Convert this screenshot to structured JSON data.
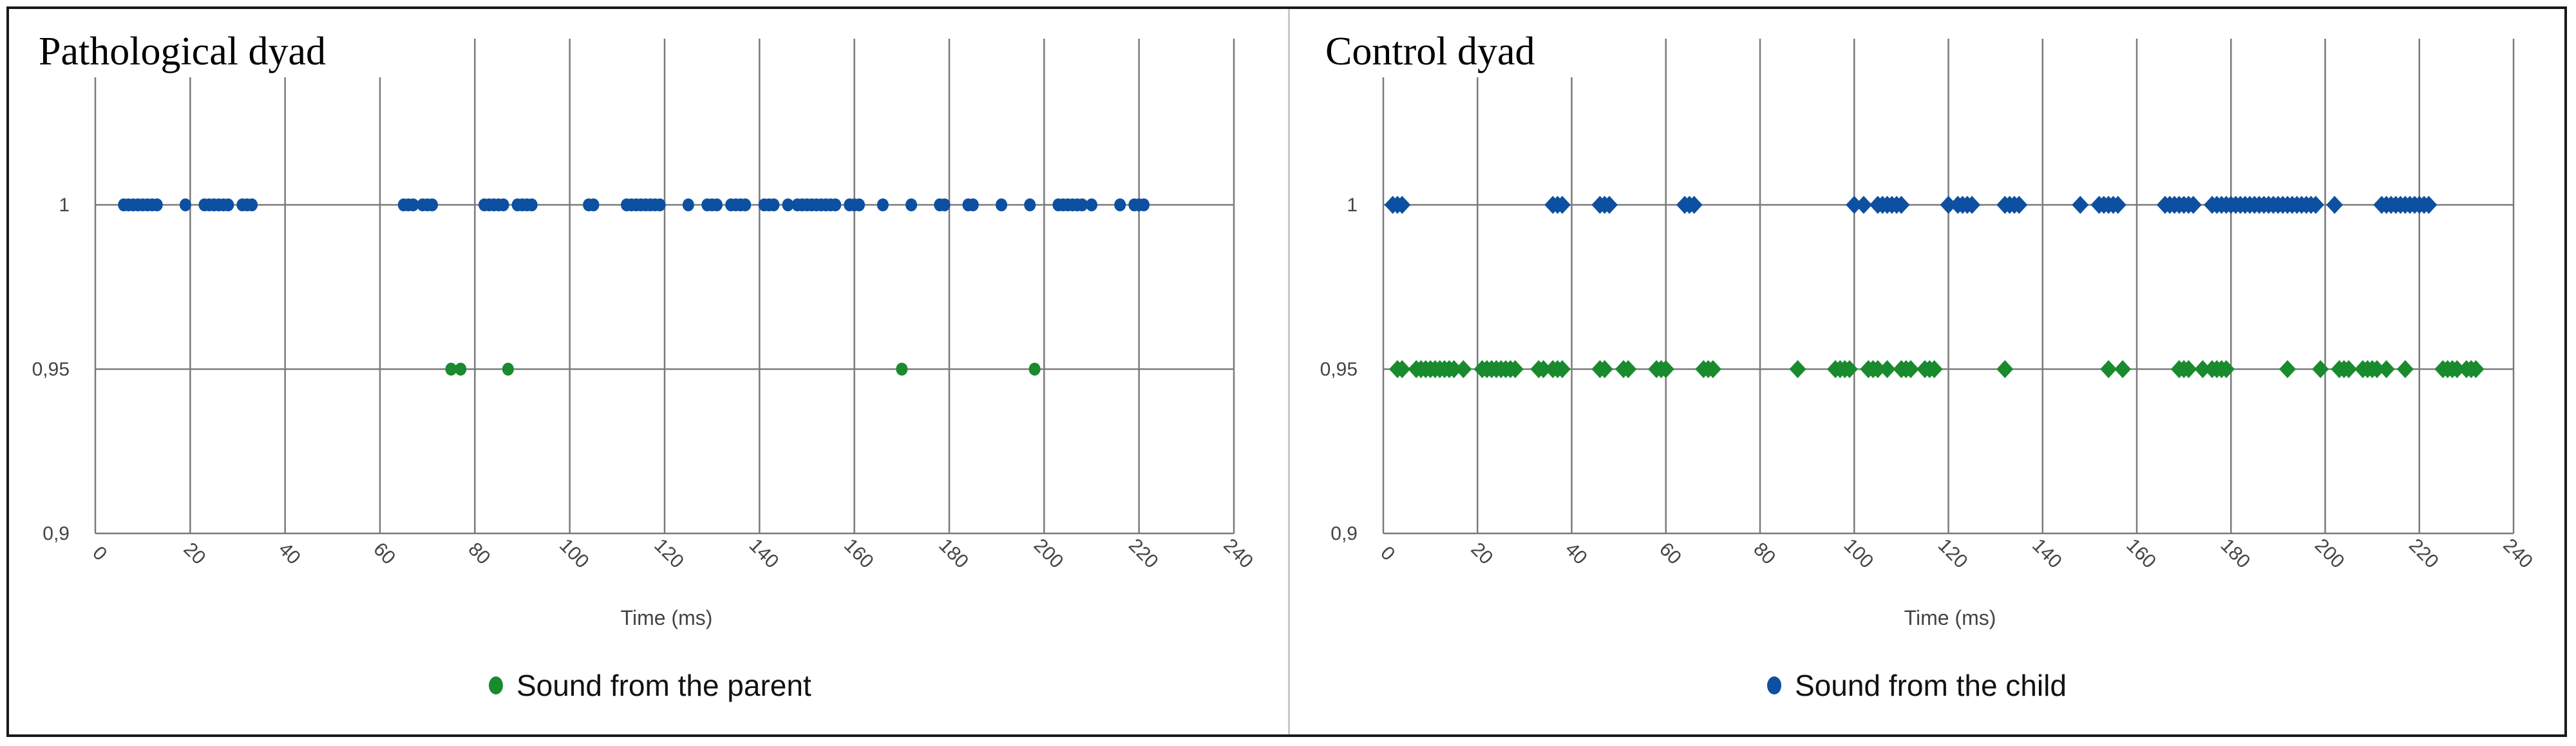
{
  "chart_data": [
    {
      "type": "scatter",
      "title": "Pathological dyad",
      "xlabel": "Time (ms)",
      "ylabel": "",
      "xlim": [
        0,
        240
      ],
      "ylim": [
        0.9,
        1.0
      ],
      "xticks": [
        0,
        20,
        40,
        60,
        80,
        100,
        120,
        140,
        160,
        180,
        200,
        220,
        240
      ],
      "yticks": [
        {
          "value": 0.9,
          "label": "0,9"
        },
        {
          "value": 0.95,
          "label": "0,95"
        },
        {
          "value": 1.0,
          "label": "1"
        }
      ],
      "grid": "vertical and horizontal gridlines",
      "legend": {
        "position": "bottom-center",
        "text": "Sound from the parent",
        "color": "#1a8a2e"
      },
      "series": [
        {
          "color": "#0d4fa0",
          "marker": "circle",
          "y": 1.0,
          "x": [
            6,
            7,
            8,
            9,
            10,
            11,
            12,
            13,
            19,
            23,
            24,
            25,
            26,
            27,
            28,
            31,
            32,
            33,
            65,
            66,
            67,
            69,
            70,
            71,
            82,
            83,
            84,
            85,
            86,
            89,
            90,
            91,
            92,
            104,
            105,
            112,
            113,
            114,
            115,
            116,
            117,
            118,
            119,
            125,
            129,
            130,
            131,
            134,
            135,
            136,
            137,
            141,
            142,
            143,
            146,
            148,
            149,
            150,
            151,
            152,
            153,
            154,
            155,
            156,
            159,
            160,
            161,
            166,
            172,
            178,
            179,
            184,
            185,
            191,
            197,
            203,
            204,
            205,
            206,
            207,
            208,
            210,
            216,
            219,
            220,
            221
          ]
        },
        {
          "color": "#1a8a2e",
          "marker": "circle",
          "y": 0.95,
          "x": [
            75,
            77,
            87,
            170,
            198
          ]
        }
      ]
    },
    {
      "type": "scatter",
      "title": "Control dyad",
      "xlabel": "Time (ms)",
      "ylabel": "",
      "xlim": [
        0,
        240
      ],
      "ylim": [
        0.9,
        1.0
      ],
      "xticks": [
        0,
        20,
        40,
        60,
        80,
        100,
        120,
        140,
        160,
        180,
        200,
        220,
        240
      ],
      "yticks": [
        {
          "value": 0.9,
          "label": "0,9"
        },
        {
          "value": 0.95,
          "label": "0,95"
        },
        {
          "value": 1.0,
          "label": "1"
        }
      ],
      "grid": "vertical and horizontal gridlines",
      "legend": {
        "position": "bottom-center",
        "text": "Sound from the child",
        "color": "#0d4fa0"
      },
      "series": [
        {
          "color": "#0d4fa0",
          "marker": "diamond",
          "y": 1.0,
          "x": [
            2,
            3,
            4,
            36,
            37,
            38,
            46,
            47,
            48,
            64,
            65,
            66,
            100,
            102,
            105,
            106,
            107,
            108,
            109,
            110,
            120,
            122,
            123,
            124,
            125,
            132,
            133,
            134,
            135,
            148,
            152,
            153,
            154,
            155,
            156,
            166,
            167,
            168,
            169,
            170,
            171,
            172,
            176,
            177,
            178,
            179,
            180,
            181,
            182,
            183,
            184,
            185,
            186,
            187,
            188,
            189,
            190,
            191,
            192,
            193,
            194,
            195,
            196,
            197,
            198,
            202,
            212,
            213,
            214,
            215,
            216,
            217,
            218,
            219,
            220,
            221,
            222
          ]
        },
        {
          "color": "#1a8a2e",
          "marker": "diamond",
          "y": 0.95,
          "x": [
            3,
            4,
            7,
            8,
            9,
            10,
            11,
            12,
            13,
            14,
            15,
            17,
            21,
            22,
            23,
            24,
            25,
            26,
            27,
            28,
            33,
            34,
            36,
            37,
            38,
            46,
            47,
            51,
            52,
            58,
            59,
            60,
            68,
            69,
            70,
            88,
            96,
            97,
            98,
            99,
            103,
            104,
            105,
            107,
            110,
            111,
            112,
            115,
            116,
            117,
            132,
            154,
            157,
            169,
            170,
            171,
            174,
            176,
            177,
            178,
            179,
            192,
            199,
            203,
            204,
            205,
            208,
            209,
            210,
            211,
            213,
            217,
            225,
            226,
            227,
            228,
            230,
            231,
            232
          ]
        }
      ]
    }
  ]
}
